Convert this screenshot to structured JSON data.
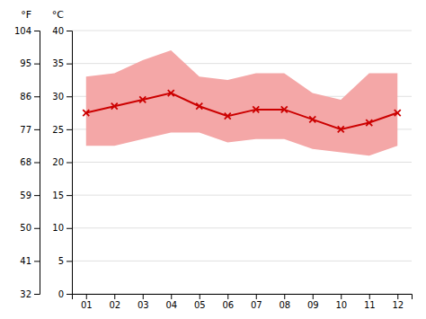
{
  "chart_data": {
    "type": "line",
    "categories": [
      "01",
      "02",
      "03",
      "04",
      "05",
      "06",
      "07",
      "08",
      "09",
      "10",
      "11",
      "12"
    ],
    "series": [
      {
        "type": "band",
        "color": "#f4a7a7",
        "low": [
          22.5,
          22.5,
          23.5,
          24.5,
          24.5,
          23.0,
          23.5,
          23.5,
          22.0,
          21.5,
          21.0,
          22.5
        ],
        "high": [
          33.0,
          33.5,
          35.5,
          37.0,
          33.0,
          32.5,
          33.5,
          33.5,
          30.5,
          29.5,
          33.5,
          33.5
        ]
      },
      {
        "type": "line",
        "color": "#cc0000",
        "marker": "x",
        "values": [
          27.5,
          28.5,
          29.5,
          30.5,
          28.5,
          27.0,
          28.0,
          28.0,
          26.5,
          25.0,
          26.0,
          27.5
        ]
      }
    ],
    "ylabel": "°C",
    "ylim": [
      0,
      40
    ],
    "yticks": [
      0,
      5,
      10,
      15,
      20,
      25,
      30,
      35,
      40
    ],
    "y2label": "°F",
    "y2lim": [
      32,
      104
    ],
    "y2ticks": [
      32,
      41,
      50,
      59,
      68,
      77,
      86,
      95,
      104
    ],
    "grid": true
  }
}
